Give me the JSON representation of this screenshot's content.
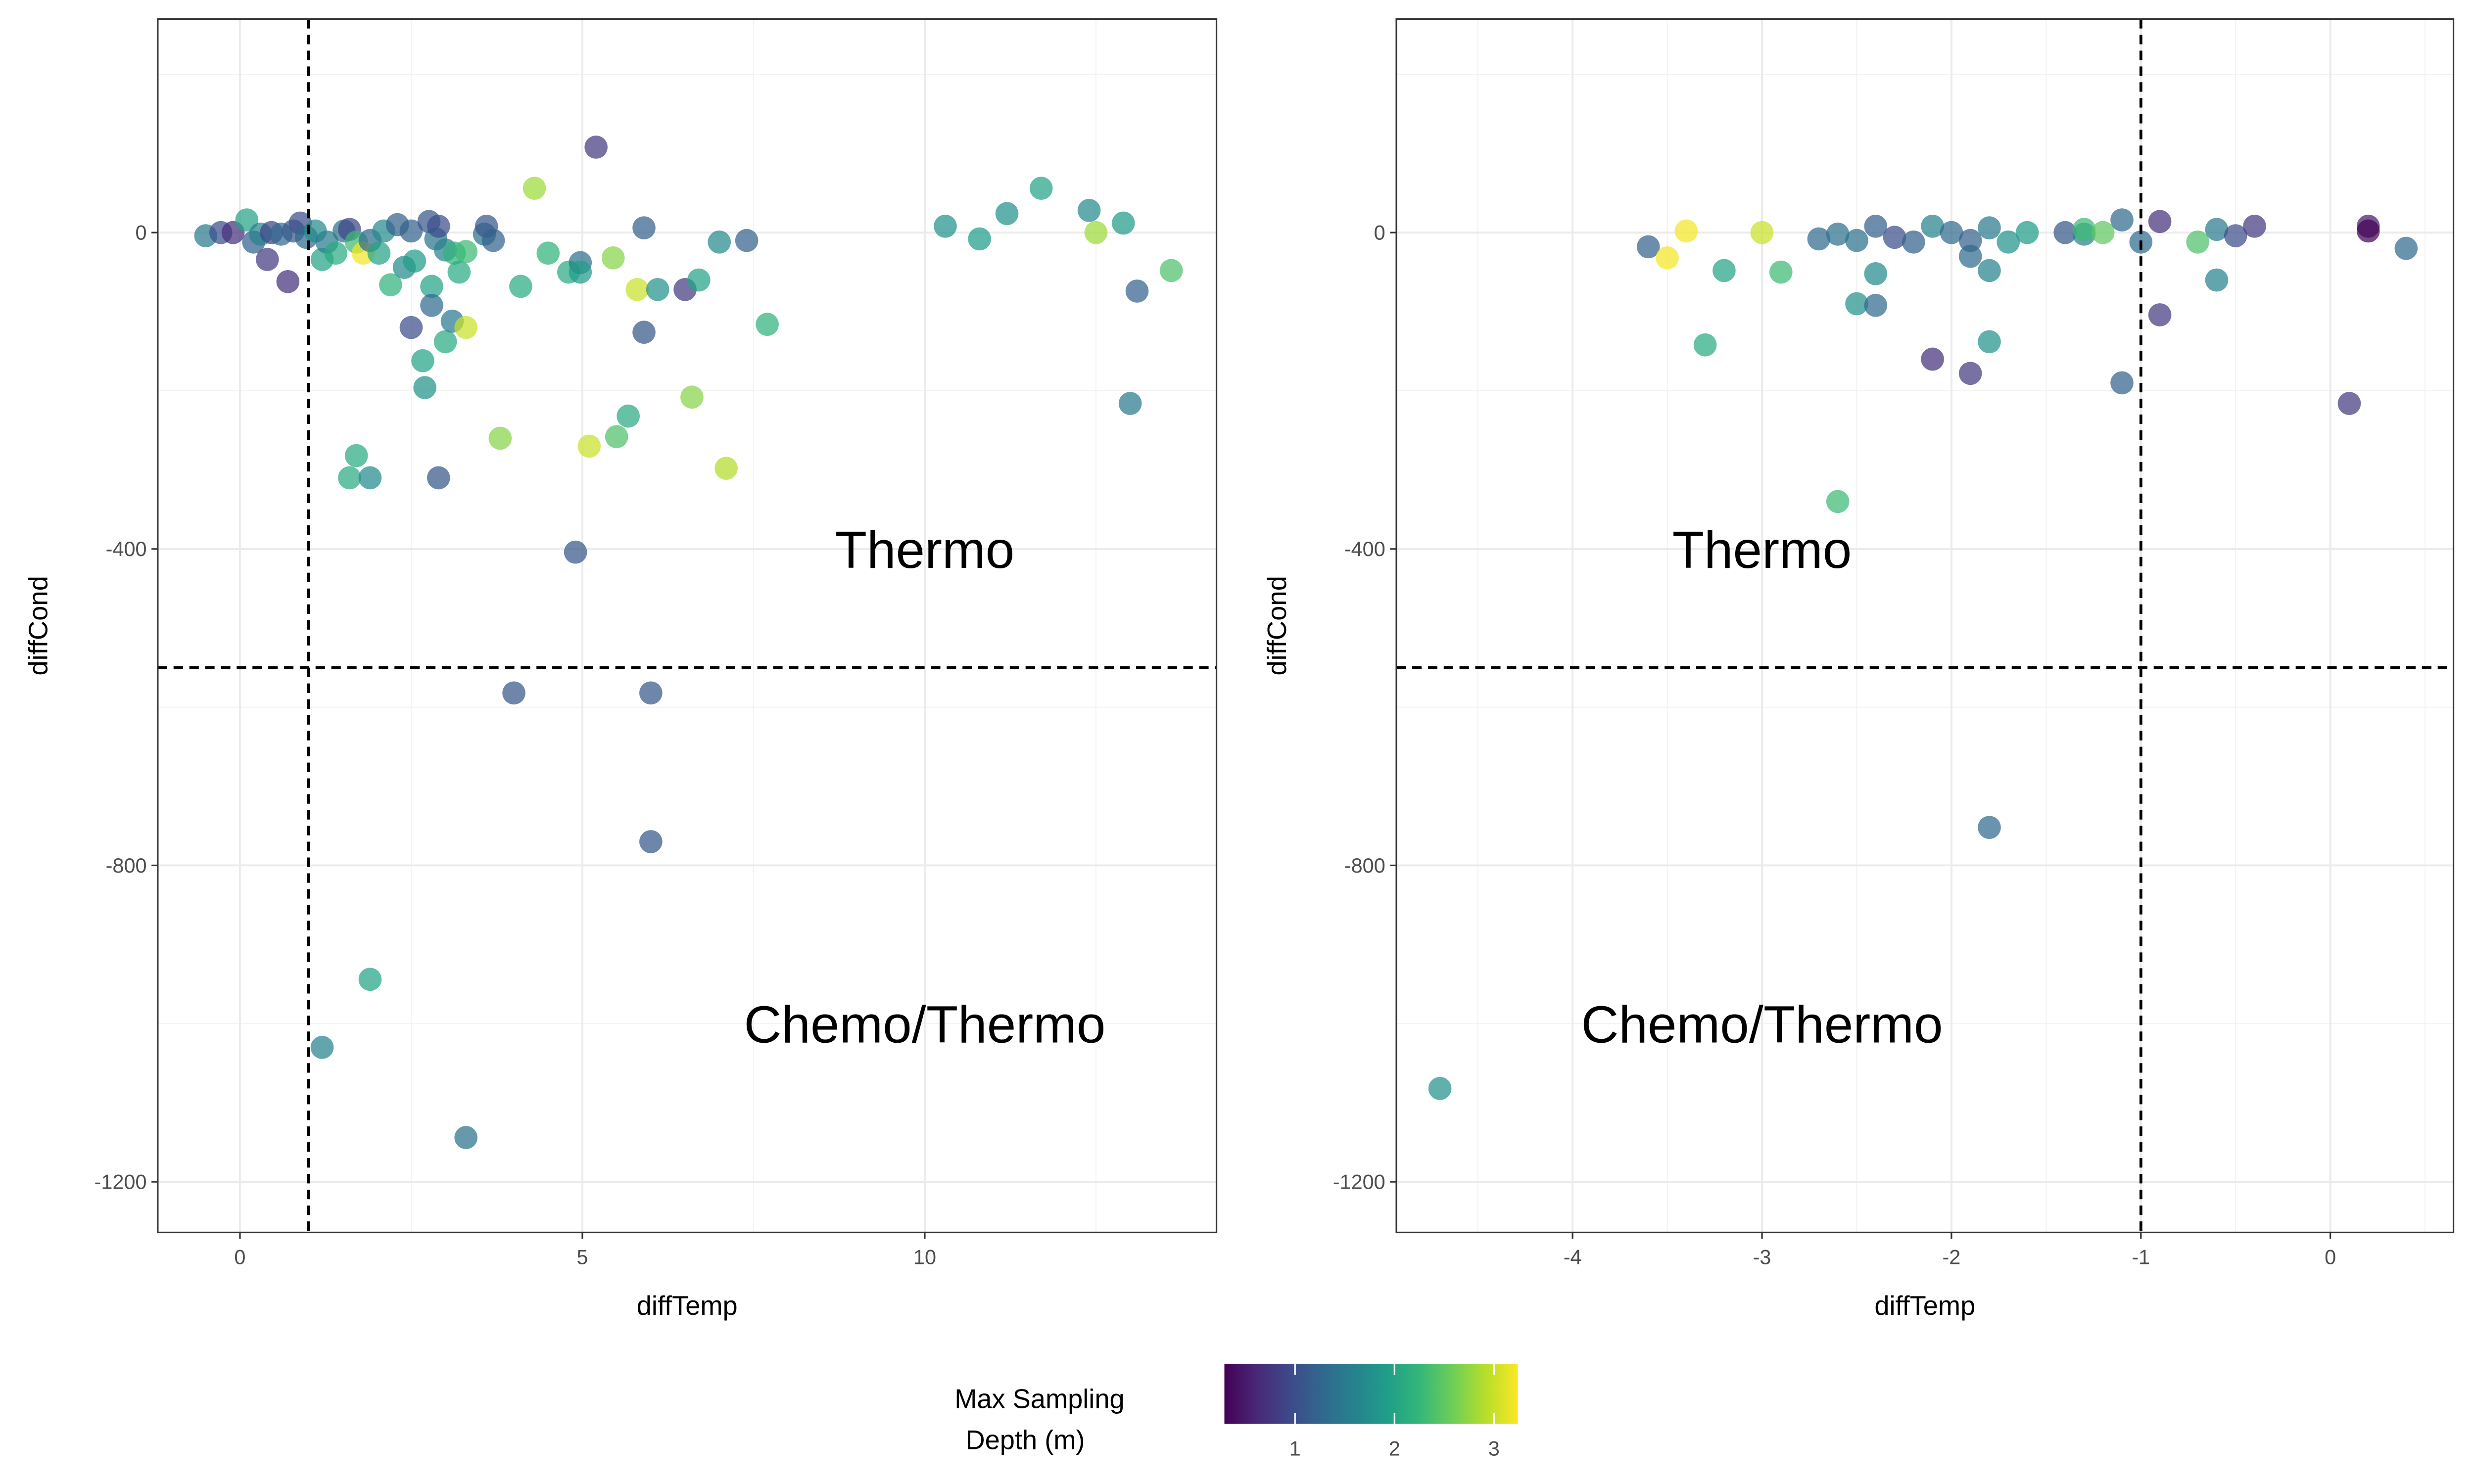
{
  "chart_data": [
    {
      "type": "scatter",
      "xlabel": "diffTemp",
      "ylabel": "diffCond",
      "xlim": [
        -1.2,
        14.26
      ],
      "ylim": [
        -1264,
        270
      ],
      "xticks": [
        0,
        5,
        10
      ],
      "yticks": [
        -1200,
        -800,
        -400,
        0
      ],
      "xminor": [
        2.5,
        7.5,
        12.5
      ],
      "yminor": [
        -1000,
        -600,
        -200,
        200
      ],
      "vline": 1,
      "hline": -550,
      "annotations": [
        {
          "text": "Thermo",
          "x": 10,
          "y": -400
        },
        {
          "text": "Chemo/Thermo",
          "x": 10,
          "y": -1000
        }
      ],
      "series": [
        {
          "x": [
            -0.5,
            -0.28,
            -0.1,
            0.1,
            0.2,
            0.3,
            0.4,
            0.46,
            0.6,
            0.7,
            0.78,
            0.88,
            0.97,
            1.1,
            1.2,
            1.27,
            1.4,
            1.52,
            1.6,
            1.7,
            1.8,
            1.9,
            2.03,
            2.1,
            2.2,
            2.3,
            2.4,
            2.5,
            2.5,
            2.55,
            2.67,
            2.7,
            2.76,
            2.8,
            2.8,
            2.86,
            2.9,
            2.9,
            3.0,
            3.0,
            3.1,
            3.13,
            3.2,
            3.3,
            3.3,
            3.57,
            3.6,
            3.7,
            3.8,
            4.1,
            4.3,
            4.5,
            4.8,
            4.97,
            4.97,
            5.2,
            5.45,
            5.5,
            5.1,
            5.67,
            5.8,
            5.9,
            5.9,
            6.1,
            6.5,
            6.7,
            6.6,
            7.0,
            7.1,
            7.4,
            7.7,
            10.3,
            10.8,
            11.2,
            11.7,
            12.4,
            12.5,
            12.9,
            13.1,
            13.6,
            13.0,
            1.7,
            1.6,
            1.9,
            4.9,
            4.0,
            6.0,
            6.0,
            1.9,
            1.2,
            3.3
          ],
          "y": [
            -4,
            0,
            0,
            16,
            -12,
            -2,
            -34,
            0,
            -2,
            -62,
            2,
            12,
            -6,
            2,
            -34,
            -12,
            -26,
            2,
            4,
            -12,
            -26,
            -10,
            -26,
            2,
            -66,
            10,
            -44,
            2,
            -120,
            -36,
            -162,
            -196,
            14,
            -68,
            -92,
            -8,
            8,
            -310,
            -22,
            -138,
            -112,
            -26,
            -50,
            -24,
            -120,
            -2,
            8,
            -10,
            -260,
            -68,
            56,
            -26,
            -50,
            -38,
            -50,
            108,
            -32,
            -258,
            -270,
            -232,
            -72,
            6,
            -126,
            -72,
            -72,
            -60,
            -208,
            -12,
            -298,
            -10,
            -116,
            8,
            -8,
            24,
            56,
            28,
            0,
            12,
            -74,
            -48,
            -216,
            -282,
            -310,
            -310,
            -404,
            -582,
            -582,
            -770,
            -944,
            -1030,
            -1144
          ],
          "depth": [
            1.5,
            1.0,
            0.7,
            2.0,
            1.2,
            1.6,
            0.8,
            0.9,
            1.3,
            0.7,
            1.1,
            1.0,
            1.3,
            1.7,
            2.0,
            1.5,
            2.1,
            1.4,
            0.9,
            2.3,
            3.2,
            1.3,
            2.0,
            1.7,
            2.2,
            1.2,
            1.7,
            1.2,
            1.0,
            1.9,
            2.0,
            1.8,
            1.1,
            2.0,
            1.3,
            1.4,
            1.0,
            1.1,
            1.6,
            2.1,
            1.5,
            2.2,
            2.1,
            2.3,
            3.0,
            1.4,
            1.1,
            1.2,
            2.7,
            2.1,
            2.8,
            2.2,
            2.1,
            1.4,
            1.9,
            0.8,
            2.7,
            2.4,
            3.0,
            2.1,
            3.0,
            1.2,
            1.1,
            1.8,
            0.8,
            2.0,
            2.7,
            1.7,
            2.9,
            1.2,
            2.2,
            1.8,
            1.9,
            1.8,
            2.0,
            1.7,
            2.8,
            1.9,
            1.2,
            2.4,
            1.5,
            2.1,
            2.1,
            1.7,
            1.1,
            1.1,
            1.1,
            1.1,
            2.0,
            1.6,
            1.4
          ]
        }
      ]
    },
    {
      "type": "scatter",
      "xlabel": "diffTemp",
      "ylabel": "diffCond",
      "xlim": [
        -4.93,
        0.65
      ],
      "ylim": [
        -1264,
        270
      ],
      "xticks": [
        -4,
        -3,
        -2,
        -1,
        0
      ],
      "yticks": [
        -1200,
        -800,
        -400,
        0
      ],
      "xminor": [
        -4.5,
        -3.5,
        -2.5,
        -1.5,
        -0.5,
        0.5
      ],
      "yminor": [
        -1000,
        -600,
        -200,
        200
      ],
      "vline": -1,
      "hline": -550,
      "annotations": [
        {
          "text": "Thermo",
          "x": -3,
          "y": -400
        },
        {
          "text": "Chemo/Thermo",
          "x": -3,
          "y": -1000
        }
      ],
      "series": [
        {
          "x": [
            -3.6,
            -3.5,
            -3.4,
            -3.3,
            -3.2,
            -3.0,
            -2.9,
            -2.7,
            -2.6,
            -2.6,
            -2.5,
            -2.5,
            -2.4,
            -2.4,
            -2.4,
            -2.3,
            -2.2,
            -2.1,
            -2.1,
            -2.0,
            -1.9,
            -1.9,
            -1.9,
            -1.8,
            -1.8,
            -1.8,
            -1.8,
            -1.7,
            -1.6,
            -1.4,
            -1.3,
            -1.3,
            -1.2,
            -1.1,
            -1.1,
            -1.0,
            -0.9,
            -0.9,
            -0.7,
            -0.6,
            -0.6,
            -0.5,
            -0.4,
            0.1,
            0.2,
            0.2,
            0.4,
            -4.7
          ],
          "y": [
            -18,
            -32,
            2,
            -142,
            -48,
            0,
            -50,
            -8,
            -2,
            -340,
            -10,
            -90,
            8,
            -52,
            -92,
            -6,
            -12,
            8,
            -160,
            0,
            -10,
            -30,
            -178,
            6,
            -48,
            -138,
            -752,
            -12,
            0,
            0,
            -2,
            4,
            0,
            16,
            -190,
            -12,
            14,
            -104,
            -12,
            4,
            -60,
            -4,
            8,
            -216,
            8,
            2,
            -20,
            -1082
          ],
          "depth": [
            1.2,
            3.2,
            3.2,
            2.1,
            2.0,
            3.0,
            2.3,
            1.3,
            1.4,
            2.3,
            1.4,
            1.8,
            1.2,
            1.7,
            1.3,
            1.0,
            1.2,
            1.6,
            0.7,
            1.3,
            1.2,
            1.3,
            0.8,
            1.5,
            1.6,
            1.8,
            1.3,
            1.8,
            1.9,
            1.1,
            1.6,
            2.3,
            2.5,
            1.3,
            1.2,
            1.3,
            0.7,
            0.8,
            2.4,
            1.5,
            1.6,
            1.0,
            0.8,
            0.8,
            0.5,
            0.3,
            1.3,
            1.8
          ]
        }
      ]
    }
  ],
  "legend": {
    "title": [
      "Max Sampling",
      "Depth (m)"
    ],
    "lim": [
      0.29,
      3.24
    ],
    "ticks": [
      1,
      2,
      3
    ],
    "colors": [
      "#440154",
      "#482878",
      "#3e4989",
      "#31688e",
      "#26828e",
      "#1f9e89",
      "#35b779",
      "#6ece58",
      "#b5de2b",
      "#fde725"
    ]
  }
}
